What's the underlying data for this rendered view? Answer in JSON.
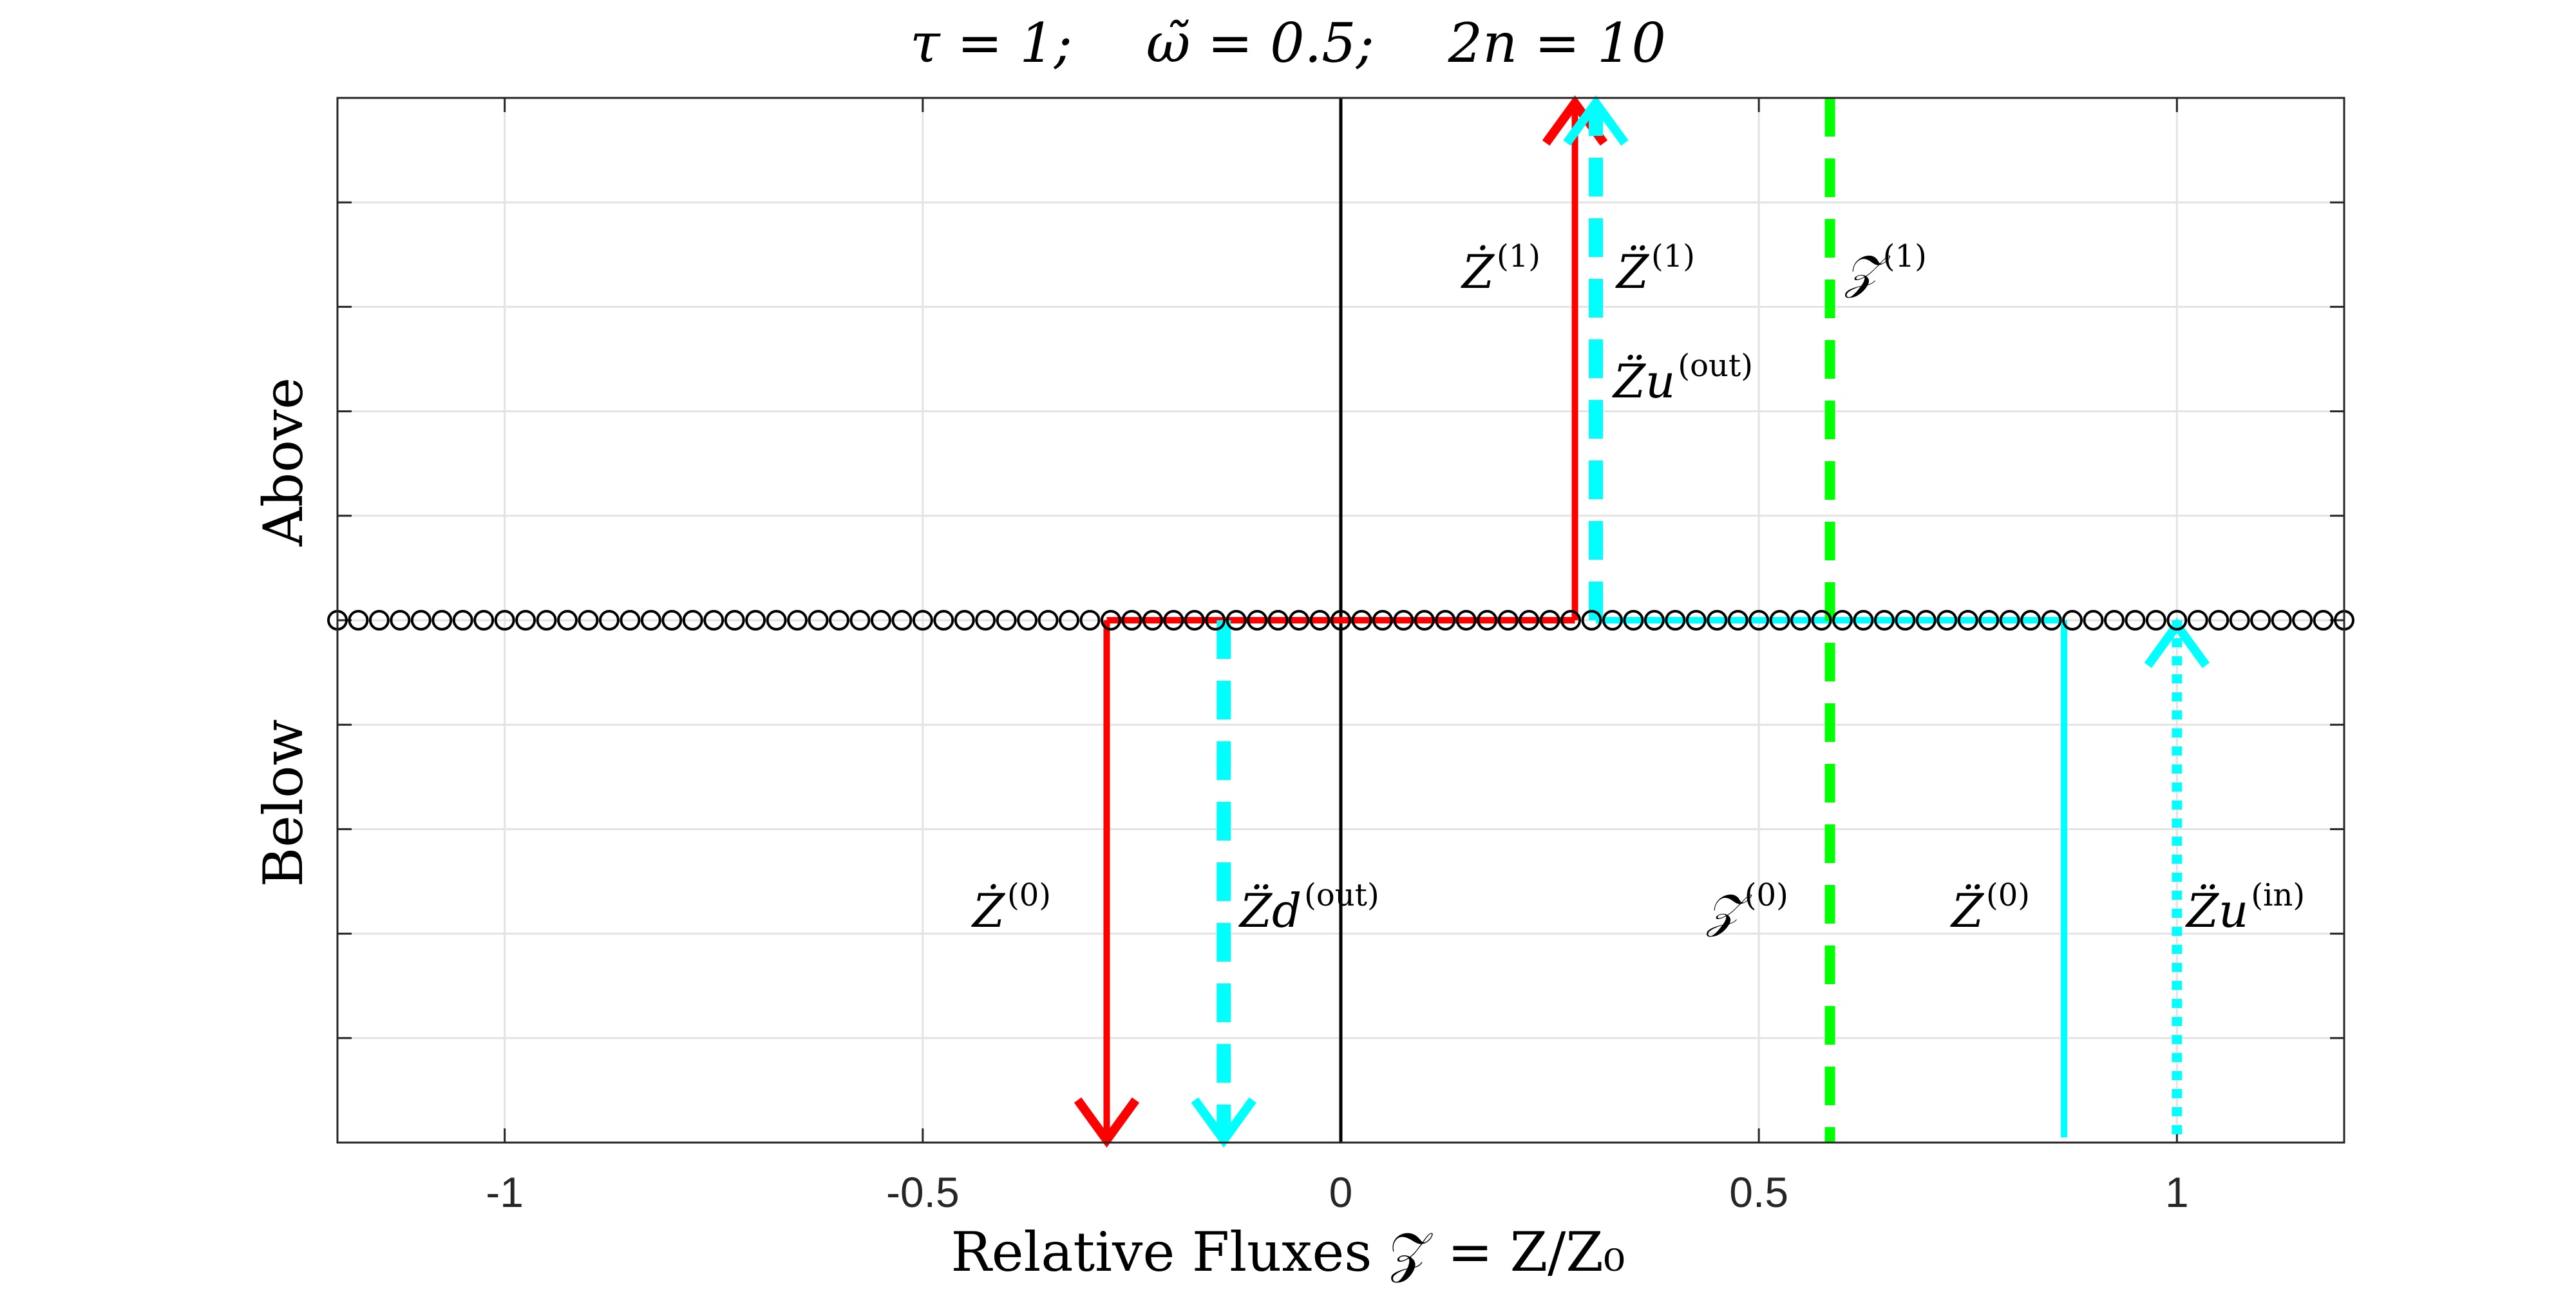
{
  "chart_data": {
    "type": "line",
    "title_parts": [
      "τ = 1;",
      "ω̃ = 0.5;",
      "2n = 10"
    ],
    "xlabel": "Relative Fluxes 𝒵 = Z/Z₀",
    "ylabel_top": "Above",
    "ylabel_bottom": "Below",
    "xlim": [
      -1.2,
      1.2
    ],
    "xticks": [
      -1,
      -0.5,
      0,
      0.5,
      1
    ],
    "xtick_labels": [
      "-1",
      "-0.5",
      "0",
      "0.5",
      "1"
    ],
    "grid": true,
    "markers_row": {
      "x_start": -1.2,
      "x_end": 1.2,
      "count": 97
    },
    "lines": [
      {
        "name": "Ż(0)",
        "x": -0.28,
        "side": "below",
        "color": "#ff0000",
        "style": "solid",
        "arrow": "down"
      },
      {
        "name": "Z̈d(out)",
        "x": -0.14,
        "side": "below",
        "color": "#00ffff",
        "style": "dashed",
        "arrow": "down"
      },
      {
        "name": "Ż(1)",
        "x": 0.28,
        "side": "above",
        "color": "#ff0000",
        "style": "solid",
        "arrow": "up"
      },
      {
        "name": "Z̈u(out)",
        "x": 0.305,
        "side": "above",
        "color": "#00ffff",
        "style": "dashed",
        "arrow": "up"
      },
      {
        "name": "Z(0)/Z(1)",
        "x": 0.585,
        "side": "both",
        "color": "#00ff00",
        "style": "dashed",
        "arrow": "none"
      },
      {
        "name": "Z̈(0)",
        "x": 0.865,
        "side": "below",
        "color": "#00ffff",
        "style": "solid",
        "arrow": "none"
      },
      {
        "name": "Z̈u(in)",
        "x": 1.0,
        "side": "below",
        "color": "#00ffff",
        "style": "dotted",
        "arrow": "up"
      }
    ],
    "annotations": [
      {
        "id": "zdot1",
        "base": "Ż",
        "sup": "(1)"
      },
      {
        "id": "zddot1",
        "base": "Z̈",
        "sup": "(1)"
      },
      {
        "id": "zcal1",
        "base": "𝒵",
        "sup": "(1)"
      },
      {
        "id": "zuout",
        "base": "Z̈u",
        "sup": "(out)"
      },
      {
        "id": "zdot0",
        "base": "Ż",
        "sup": "(0)"
      },
      {
        "id": "zdout",
        "base": "Z̈d",
        "sup": "(out)"
      },
      {
        "id": "zcal0",
        "base": "𝒵",
        "sup": "(0)"
      },
      {
        "id": "zddot0",
        "base": "Z̈",
        "sup": "(0)"
      },
      {
        "id": "zuin",
        "base": "Z̈u",
        "sup": "(in)"
      }
    ]
  }
}
